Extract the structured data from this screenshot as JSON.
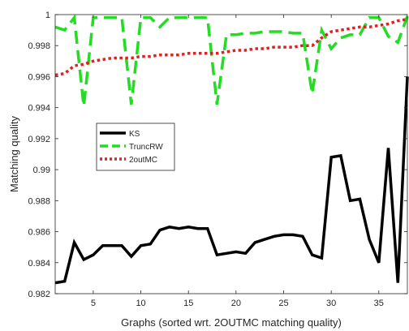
{
  "chart_data": {
    "type": "line",
    "title": "",
    "xlabel": "Graphs (sorted wrt. 2OUTMC matching quality)",
    "ylabel": "Matching quality",
    "xlim": [
      1,
      38
    ],
    "ylim": [
      0.982,
      1.0
    ],
    "xticks": [
      5,
      10,
      15,
      20,
      25,
      30,
      35
    ],
    "yticks": [
      0.982,
      0.984,
      0.986,
      0.988,
      0.99,
      0.992,
      0.994,
      0.996,
      0.998,
      1
    ],
    "xtick_labels": [
      "5",
      "10",
      "15",
      "20",
      "25",
      "30",
      "35"
    ],
    "ytick_labels": [
      "0.982",
      "0.984",
      "0.986",
      "0.988",
      "0.99",
      "0.992",
      "0.994",
      "0.996",
      "0.998",
      "1"
    ],
    "grid": false,
    "legend_position": "middle-left",
    "x": [
      1,
      2,
      3,
      4,
      5,
      6,
      7,
      8,
      9,
      10,
      11,
      12,
      13,
      14,
      15,
      16,
      17,
      18,
      19,
      20,
      21,
      22,
      23,
      24,
      25,
      26,
      27,
      28,
      29,
      30,
      31,
      32,
      33,
      34,
      35,
      36,
      37,
      38
    ],
    "series": [
      {
        "name": "KS",
        "color": "#000000",
        "dash": "solid",
        "values": [
          0.9827,
          0.9828,
          0.9853,
          0.9842,
          0.9845,
          0.9851,
          0.9851,
          0.9851,
          0.9844,
          0.9851,
          0.9852,
          0.9861,
          0.9863,
          0.9862,
          0.9863,
          0.9862,
          0.9862,
          0.9845,
          0.9846,
          0.9847,
          0.9846,
          0.9853,
          0.9855,
          0.9857,
          0.9858,
          0.9858,
          0.9857,
          0.9845,
          0.9843,
          0.9908,
          0.9909,
          0.988,
          0.9881,
          0.9855,
          0.984,
          0.9914,
          0.9827,
          0.996
        ]
      },
      {
        "name": "TruncRW",
        "color": "#22dd22",
        "dash": "dashed",
        "values": [
          0.9992,
          0.999,
          0.9998,
          0.9941,
          0.9998,
          0.9998,
          0.9998,
          0.9998,
          0.9942,
          0.9998,
          0.9998,
          0.9992,
          0.9998,
          0.9998,
          0.9998,
          0.9998,
          0.9998,
          0.9942,
          0.9987,
          0.9987,
          0.9988,
          0.9988,
          0.9989,
          0.9989,
          0.9989,
          0.9988,
          0.9988,
          0.9949,
          0.999,
          0.9978,
          0.9985,
          0.9987,
          0.9987,
          0.9998,
          0.9998,
          0.9986,
          0.9982,
          0.9999
        ]
      },
      {
        "name": "2outMC",
        "color": "#dd2222",
        "dash": "dotted",
        "values": [
          0.9961,
          0.9962,
          0.9967,
          0.9968,
          0.997,
          0.9971,
          0.9972,
          0.9972,
          0.9972,
          0.9973,
          0.9973,
          0.9974,
          0.9974,
          0.9974,
          0.9975,
          0.9975,
          0.9975,
          0.9975,
          0.9976,
          0.9977,
          0.9977,
          0.9978,
          0.9978,
          0.9979,
          0.9979,
          0.9979,
          0.998,
          0.998,
          0.9985,
          0.9989,
          0.999,
          0.9991,
          0.9992,
          0.9992,
          0.9993,
          0.9994,
          0.9996,
          0.9997
        ]
      }
    ]
  }
}
